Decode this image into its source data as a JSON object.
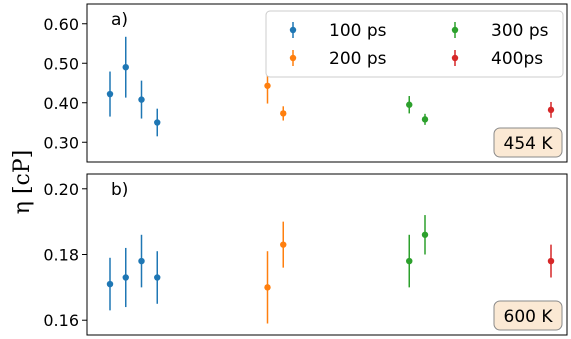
{
  "chart_data": {
    "type": "scatter",
    "ylabel": "η [cP]",
    "series_legend": [
      {
        "name": "100 ps",
        "color": "#1f77b4"
      },
      {
        "name": "200 ps",
        "color": "#ff7f0e"
      },
      {
        "name": "300 ps",
        "color": "#2ca02c"
      },
      {
        "name": "400ps",
        "color": "#d62728"
      }
    ],
    "panels": [
      {
        "label": "a)",
        "badge": "454 K",
        "ylim": [
          0.25,
          0.65
        ],
        "yticks": [
          0.3,
          0.4,
          0.5,
          0.6
        ],
        "ytick_labels": [
          "0.30",
          "0.40",
          "0.50",
          "0.60"
        ],
        "xlim": [
          0,
          30
        ],
        "series": [
          {
            "name": "100 ps",
            "color": "#1f77b4",
            "x": [
              1,
              2,
              3,
              4
            ],
            "y": [
              0.422,
              0.49,
              0.408,
              0.35
            ],
            "yerr": [
              0.057,
              0.077,
              0.048,
              0.035
            ]
          },
          {
            "name": "200 ps",
            "color": "#ff7f0e",
            "x": [
              11,
              12
            ],
            "y": [
              0.443,
              0.373
            ],
            "yerr": [
              0.045,
              0.018
            ]
          },
          {
            "name": "300 ps",
            "color": "#2ca02c",
            "x": [
              20,
              21
            ],
            "y": [
              0.395,
              0.358
            ],
            "yerr": [
              0.022,
              0.014
            ]
          },
          {
            "name": "400ps",
            "color": "#d62728",
            "x": [
              29
            ],
            "y": [
              0.382
            ],
            "yerr": [
              0.02
            ]
          }
        ]
      },
      {
        "label": "b)",
        "badge": "600 K",
        "ylim": [
          0.1555,
          0.2045
        ],
        "yticks": [
          0.16,
          0.18,
          0.2
        ],
        "ytick_labels": [
          "0.16",
          "0.18",
          "0.20"
        ],
        "xlim": [
          0,
          30
        ],
        "series": [
          {
            "name": "100 ps",
            "color": "#1f77b4",
            "x": [
              1,
              2,
              3,
              4
            ],
            "y": [
              0.171,
              0.173,
              0.178,
              0.173
            ],
            "yerr": [
              0.008,
              0.009,
              0.008,
              0.008
            ]
          },
          {
            "name": "200 ps",
            "color": "#ff7f0e",
            "x": [
              11,
              12
            ],
            "y": [
              0.17,
              0.183
            ],
            "yerr": [
              0.011,
              0.007
            ]
          },
          {
            "name": "300 ps",
            "color": "#2ca02c",
            "x": [
              20,
              21
            ],
            "y": [
              0.178,
              0.186
            ],
            "yerr": [
              0.008,
              0.006
            ]
          },
          {
            "name": "400ps",
            "color": "#d62728",
            "x": [
              29
            ],
            "y": [
              0.178
            ],
            "yerr": [
              0.005
            ]
          }
        ]
      }
    ]
  }
}
